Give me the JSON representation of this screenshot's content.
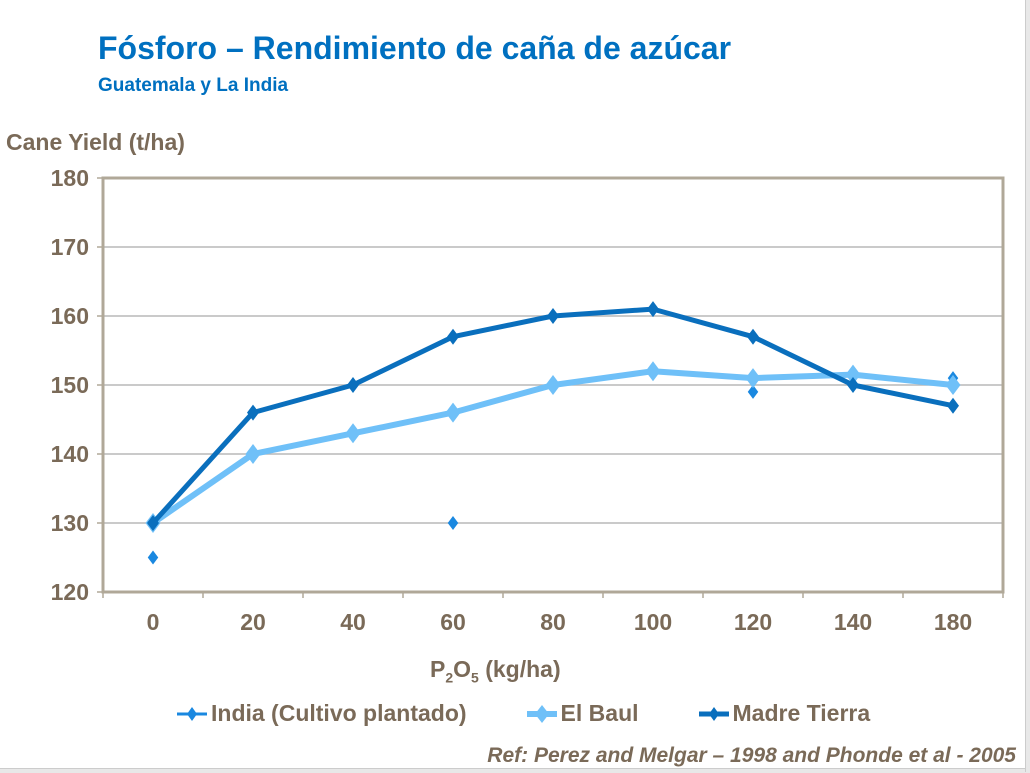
{
  "chart_data": {
    "type": "line",
    "title": "Fósforo – Rendimiento de caña de azúcar",
    "subtitle": "Guatemala y La India",
    "ylabel": "Cane Yield (t/ha)",
    "xlabel_parts": {
      "p": "P",
      "sub1": "2",
      "o": "O",
      "sub2": "5",
      "rest": " (kg/ha)"
    },
    "categories": [
      "0",
      "20",
      "40",
      "60",
      "80",
      "100",
      "120",
      "140",
      "180"
    ],
    "ylim": [
      120,
      180
    ],
    "yticks": [
      120,
      130,
      140,
      150,
      160,
      170,
      180
    ],
    "grid": true,
    "legend_position": "bottom",
    "series": [
      {
        "name": "India (Cultivo plantado)",
        "color": "#1a88e0",
        "values": [
          125,
          null,
          null,
          130,
          null,
          null,
          149,
          null,
          151
        ],
        "line": false
      },
      {
        "name": "El Baul",
        "color": "#6fc0f8",
        "values": [
          130,
          140,
          143,
          146,
          150,
          152,
          151,
          151.5,
          150
        ],
        "line": true
      },
      {
        "name": "Madre Tierra",
        "color": "#0a6fbd",
        "values": [
          130,
          146,
          150,
          157,
          160,
          161,
          157,
          150,
          147
        ],
        "line": true
      }
    ],
    "reference": "Ref:  Perez and Melgar – 1998 and Phonde et al - 2005"
  }
}
